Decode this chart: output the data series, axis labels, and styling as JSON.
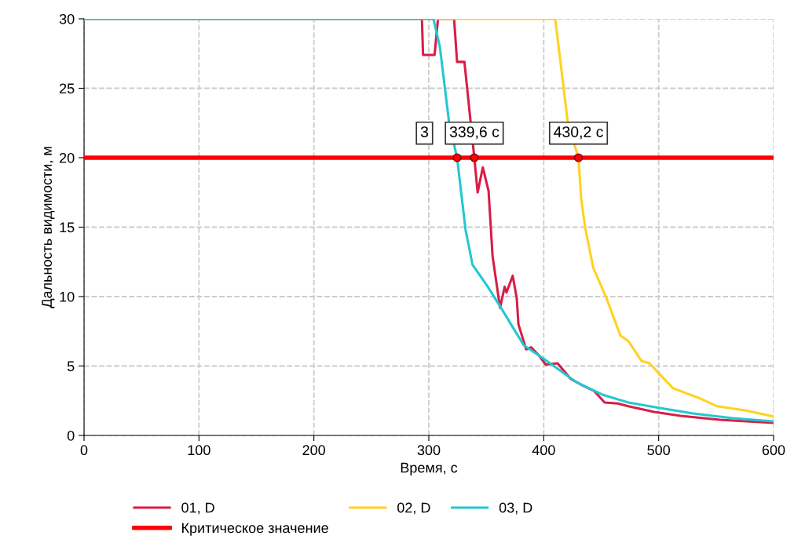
{
  "chart_data": {
    "type": "line",
    "xlabel": "Время, с",
    "ylabel": "Дальность видимости, м",
    "xlim": [
      0,
      600
    ],
    "ylim": [
      0,
      30
    ],
    "xticks": [
      0,
      100,
      200,
      300,
      400,
      500,
      600
    ],
    "yticks": [
      0,
      5,
      10,
      15,
      20,
      25,
      30
    ],
    "grid": true,
    "legend": "bottom",
    "marker": "none",
    "line_style": "solid",
    "series": [
      {
        "name": "01, D",
        "color": "#d81e48",
        "x": [
          0,
          294,
          295,
          305,
          308,
          322,
          324.6,
          331,
          339.6,
          342.5,
          347,
          352,
          355.5,
          362,
          366,
          367.6,
          373,
          376.5,
          378,
          384.7,
          389,
          396,
          401.8,
          412,
          423.5,
          434.7,
          444,
          453,
          464.5,
          473.6,
          496,
          519,
          553,
          600
        ],
        "values": [
          30,
          30,
          27.4,
          27.4,
          30,
          30,
          26.9,
          26.9,
          20,
          17.5,
          19.3,
          17.6,
          12.9,
          9.2,
          10.7,
          10.3,
          11.5,
          9.9,
          8.0,
          6.2,
          6.35,
          5.75,
          5.1,
          5.2,
          4.07,
          3.56,
          3.2,
          2.37,
          2.3,
          2.1,
          1.7,
          1.41,
          1.13,
          0.9
        ]
      },
      {
        "name": "02, D",
        "color": "#ffd21f",
        "x": [
          0,
          410,
          421,
          430.2,
          432.6,
          436,
          443,
          454.5,
          466.7,
          473.6,
          485,
          492,
          501,
          512.5,
          535,
          551,
          576,
          600
        ],
        "values": [
          30,
          30,
          22.5,
          20,
          17,
          15,
          12.1,
          9.9,
          7.2,
          6.8,
          5.37,
          5.2,
          4.4,
          3.4,
          2.7,
          2.1,
          1.8,
          1.36
        ]
      },
      {
        "name": "03, D",
        "color": "#22c8d2",
        "x": [
          0,
          304,
          309.6,
          317.7,
          324.6,
          332,
          338,
          350.6,
          362,
          382.6,
          400.5,
          428,
          451,
          473.6,
          501,
          530,
          564.5,
          600
        ],
        "values": [
          30,
          30,
          28,
          22.5,
          20,
          14.8,
          12.3,
          10.8,
          9.3,
          6.5,
          5.5,
          3.85,
          2.94,
          2.37,
          1.98,
          1.58,
          1.24,
          1.02
        ]
      }
    ],
    "ref_lines": [
      {
        "axis": "y",
        "value": 20,
        "label": "Критическое значение",
        "color": "#ff0000",
        "line_style": "solid"
      }
    ],
    "annotations": [
      {
        "text": "3",
        "x": 324.6,
        "y": 20
      },
      {
        "text": "339,6 с",
        "x": 339.6,
        "y": 20
      },
      {
        "text": "430,2 с",
        "x": 430.2,
        "y": 20
      }
    ]
  }
}
